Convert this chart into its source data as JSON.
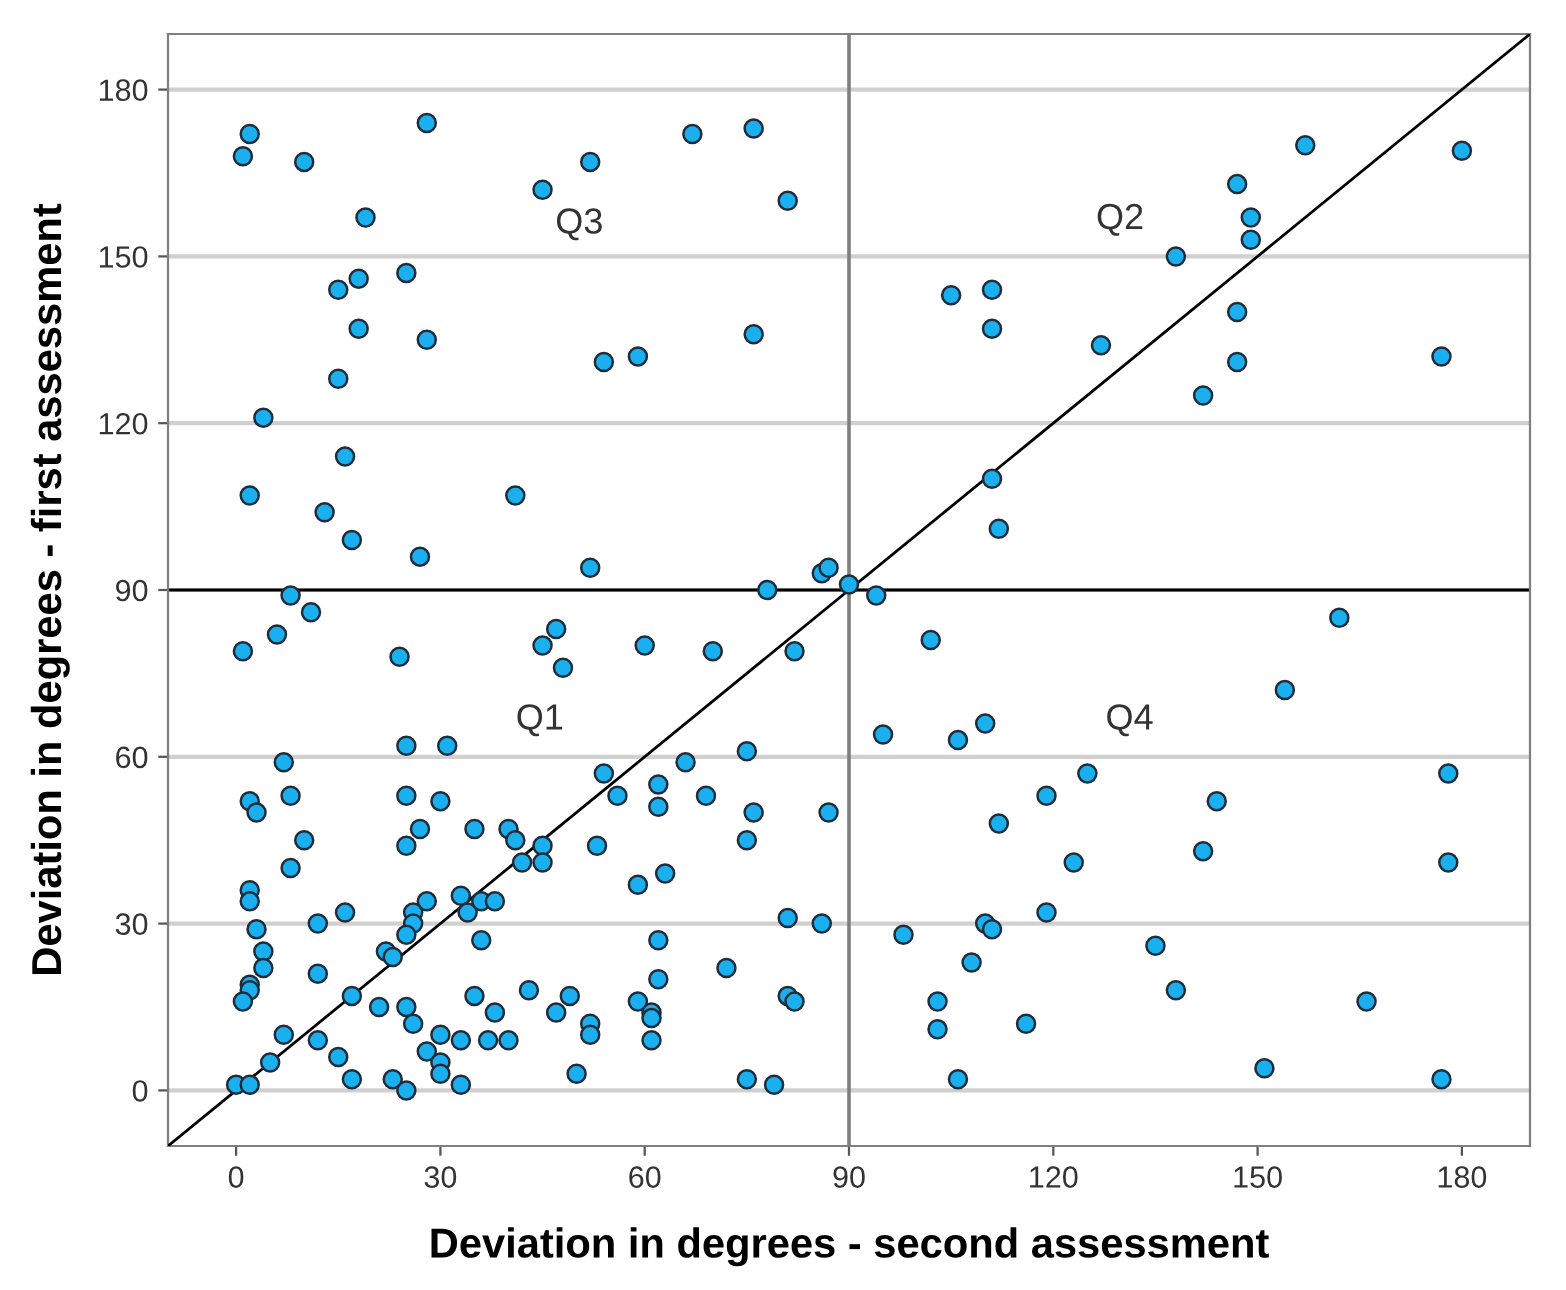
{
  "chart_data": {
    "type": "scatter",
    "xlabel": "Deviation in degrees - second assessment",
    "ylabel": "Deviation in degrees - first assessment",
    "xlim": [
      -10,
      190
    ],
    "ylim": [
      -10,
      190
    ],
    "xticks": [
      0,
      30,
      60,
      90,
      120,
      150,
      180
    ],
    "yticks": [
      0,
      30,
      60,
      90,
      120,
      150,
      180
    ],
    "grid": "y",
    "marker": "circle",
    "series": [
      {
        "color": "#1ab0ef",
        "x": [
          2,
          1,
          10,
          28,
          45,
          52,
          67,
          76,
          81,
          19,
          18,
          15,
          25,
          18,
          28,
          15,
          4,
          16,
          2,
          41,
          13,
          17,
          27,
          52,
          54,
          59,
          76,
          8,
          11,
          6,
          1,
          24,
          45,
          47,
          48,
          60,
          70,
          78,
          82,
          86,
          87,
          90,
          105,
          111,
          111,
          127,
          138,
          147,
          149,
          149,
          147,
          147,
          157,
          180,
          177,
          142,
          111,
          112,
          94,
          102,
          95,
          106,
          110,
          125,
          119,
          112,
          144,
          154,
          162,
          178,
          178,
          123,
          142,
          110,
          111,
          119,
          98,
          108,
          103,
          103,
          116,
          106,
          138,
          135,
          151,
          166,
          177,
          25,
          31,
          7,
          54,
          56,
          2,
          3,
          8,
          25,
          30,
          27,
          25,
          35,
          40,
          41,
          45,
          53,
          42,
          45,
          10,
          8,
          2,
          2,
          28,
          33,
          34,
          36,
          38,
          26,
          26,
          25,
          36,
          16,
          12,
          3,
          4,
          4,
          22,
          23,
          12,
          2,
          2,
          1,
          17,
          35,
          43,
          49,
          21,
          25,
          26,
          38,
          47,
          52,
          52,
          7,
          12,
          15,
          5,
          28,
          30,
          33,
          30,
          30,
          37,
          40,
          50,
          17,
          23,
          25,
          33,
          0,
          2,
          75,
          66,
          62,
          62,
          69,
          76,
          87,
          75,
          63,
          59,
          81,
          86,
          62,
          72,
          62,
          59,
          61,
          61,
          61,
          81,
          82,
          75,
          79
        ],
        "values": [
          172,
          168,
          167,
          174,
          162,
          167,
          172,
          173,
          160,
          157,
          146,
          144,
          147,
          137,
          135,
          128,
          121,
          114,
          107,
          107,
          104,
          99,
          96,
          94,
          131,
          132,
          136,
          89,
          86,
          82,
          79,
          78,
          80,
          83,
          76,
          80,
          79,
          90,
          79,
          93,
          94,
          91,
          143,
          144,
          137,
          134,
          150,
          163,
          157,
          153,
          140,
          131,
          170,
          169,
          132,
          125,
          110,
          101,
          89,
          81,
          64,
          63,
          66,
          57,
          53,
          48,
          52,
          72,
          85,
          57,
          41,
          41,
          43,
          30,
          29,
          32,
          28,
          23,
          16,
          11,
          12,
          2,
          18,
          26,
          4,
          16,
          2,
          62,
          62,
          59,
          57,
          53,
          52,
          50,
          53,
          53,
          52,
          47,
          44,
          47,
          47,
          45,
          44,
          44,
          41,
          41,
          45,
          40,
          36,
          34,
          34,
          35,
          32,
          34,
          34,
          32,
          30,
          28,
          27,
          32,
          30,
          29,
          25,
          22,
          25,
          24,
          21,
          19,
          18,
          16,
          17,
          17,
          18,
          17,
          15,
          15,
          12,
          14,
          14,
          12,
          10,
          10,
          9,
          6,
          5,
          7,
          10,
          9,
          5,
          3,
          9,
          9,
          3,
          2,
          2,
          0,
          1,
          1,
          1,
          61,
          59,
          55,
          51,
          53,
          50,
          50,
          45,
          39,
          37,
          31,
          30,
          27,
          22,
          20,
          16,
          14,
          13,
          9,
          17,
          16,
          2,
          1
        ]
      },
      {
        "type": "line",
        "marker": "none",
        "color": "#000000",
        "x": [
          -10,
          190
        ],
        "values": [
          -10,
          190
        ]
      }
    ],
    "ref_lines": [
      {
        "axis": "x",
        "value": 90,
        "color": "#7f7f7f"
      },
      {
        "axis": "y",
        "value": 90,
        "color": "#000000"
      }
    ],
    "annotations": [
      "Q1",
      "Q2",
      "Q3",
      "Q4"
    ]
  }
}
